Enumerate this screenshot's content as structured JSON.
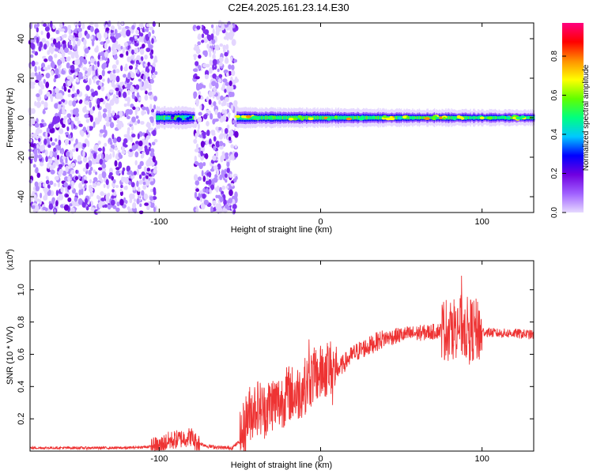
{
  "title": "C2E4.2025.161.23.14.E30",
  "chart_data": [
    {
      "type": "heatmap",
      "xlabel": "Height of straight line (km)",
      "ylabel": "Frequency (Hz)",
      "xlim": [
        -180,
        132
      ],
      "ylim": [
        -48,
        48
      ],
      "xticks": [
        -100,
        0,
        100
      ],
      "yticks": [
        -40,
        -20,
        0,
        20,
        40
      ],
      "colorbar": {
        "label": "Normalized spectral amplitude",
        "range": [
          0.0,
          0.97
        ],
        "ticks": [
          "0.0",
          "0.2",
          "0.4",
          "0.6",
          "0.8"
        ],
        "colormap": [
          "#e6d9ff",
          "#a060ff",
          "#7000e0",
          "#0000ff",
          "#00c8ff",
          "#00ff80",
          "#60ff00",
          "#ffff00",
          "#ff9000",
          "#ff0000",
          "#ff0080"
        ]
      },
      "regions": [
        {
          "from": -180,
          "to": -102,
          "kind": "broadband noise",
          "amplitude": 0.1
        },
        {
          "from": -102,
          "to": -78,
          "kind": "narrowband near 0 Hz",
          "amplitude": 0.35
        },
        {
          "from": -78,
          "to": -52,
          "kind": "broadband noise",
          "amplitude": 0.1
        },
        {
          "from": -52,
          "to": 132,
          "kind": "narrowband near 0 Hz",
          "amplitude": 0.7
        }
      ]
    },
    {
      "type": "line",
      "xlabel": "Height of straight line (km)",
      "ylabel": "SNR (10 * V/V)",
      "yscale_label": "(x10",
      "yscale_exp": "4",
      "xlim": [
        -180,
        132
      ],
      "ylim": [
        0,
        1.18
      ],
      "xticks": [
        -100,
        0,
        100
      ],
      "yticks": [
        0.2,
        0.4,
        0.6,
        0.8,
        1.0
      ],
      "series": [
        {
          "name": "SNR",
          "color": "#ee3333",
          "x": [
            -180,
            -150,
            -120,
            -100,
            -95,
            -90,
            -85,
            -80,
            -78,
            -70,
            -60,
            -55,
            -50,
            -45,
            -40,
            -35,
            -30,
            -25,
            -20,
            -15,
            -10,
            -5,
            0,
            5,
            10,
            15,
            20,
            25,
            30,
            35,
            40,
            50,
            60,
            70,
            80,
            85,
            90,
            95,
            100,
            110,
            120,
            132
          ],
          "values": [
            0.02,
            0.02,
            0.02,
            0.03,
            0.06,
            0.07,
            0.08,
            0.09,
            0.06,
            0.03,
            0.02,
            0.02,
            0.06,
            0.22,
            0.28,
            0.25,
            0.3,
            0.3,
            0.36,
            0.35,
            0.4,
            0.46,
            0.48,
            0.52,
            0.5,
            0.55,
            0.6,
            0.63,
            0.65,
            0.68,
            0.7,
            0.72,
            0.73,
            0.74,
            0.76,
            0.78,
            0.76,
            0.75,
            0.74,
            0.73,
            0.73,
            0.72
          ]
        }
      ]
    }
  ]
}
